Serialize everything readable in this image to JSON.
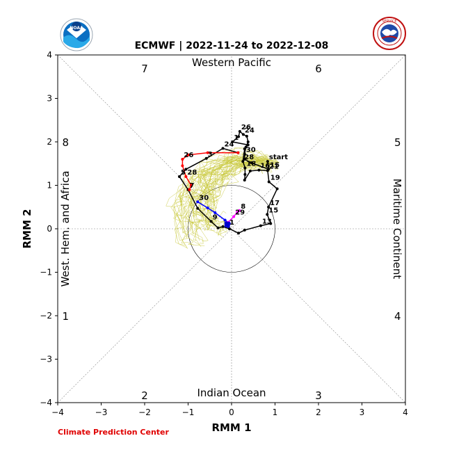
{
  "chart_data": {
    "type": "line",
    "title": "ECMWF | 2022-11-24 to 2022-12-08",
    "xlabel": "RMM 1",
    "ylabel": "RMM 2",
    "xlim": [
      -4,
      4
    ],
    "ylim": [
      -4,
      4
    ],
    "ticks": [
      -4,
      -3,
      -2,
      -1,
      0,
      1,
      2,
      3,
      4
    ],
    "grid": false,
    "unit_circle_radius": 1,
    "phase_numbers": [
      {
        "label": "7",
        "x": -2,
        "y": 3.7
      },
      {
        "label": "6",
        "x": 2,
        "y": 3.7
      },
      {
        "label": "8",
        "x": -3.82,
        "y": 2
      },
      {
        "label": "5",
        "x": 3.82,
        "y": 2
      },
      {
        "label": "1",
        "x": -3.82,
        "y": -2
      },
      {
        "label": "4",
        "x": 3.82,
        "y": -2
      },
      {
        "label": "2",
        "x": -2,
        "y": -3.82
      },
      {
        "label": "3",
        "x": 2,
        "y": -3.82
      }
    ],
    "region_labels": {
      "top": "Western Pacific",
      "bottom": "Indian Ocean",
      "left": "West. Hem. and Africa",
      "right": "Maritime Continent"
    },
    "series": [
      {
        "color": "#000000",
        "points": [
          [
            0.83,
            1.55,
            "start"
          ],
          [
            0.85,
            1.37,
            "15"
          ],
          [
            0.45,
            1.52,
            ""
          ],
          [
            0.3,
            1.6,
            ""
          ],
          [
            0.3,
            1.72,
            "30"
          ],
          [
            0.33,
            1.88,
            ""
          ],
          [
            0.38,
            2.0,
            ""
          ],
          [
            0.35,
            2.13,
            ""
          ],
          [
            0.27,
            2.17,
            "24"
          ],
          [
            0.19,
            2.24,
            "26"
          ],
          [
            0.16,
            2.12,
            ""
          ],
          [
            0.02,
            2.0,
            "1"
          ],
          [
            0.38,
            1.93,
            ""
          ],
          [
            0.3,
            1.84,
            ""
          ],
          [
            0.26,
            1.55,
            "28"
          ],
          [
            0.31,
            1.4,
            "18"
          ],
          [
            0.31,
            1.25,
            ""
          ],
          [
            0.3,
            1.12,
            ""
          ],
          [
            0.43,
            1.33,
            ""
          ],
          [
            0.63,
            1.35,
            "16"
          ],
          [
            0.83,
            1.34,
            "21"
          ],
          [
            0.86,
            1.08,
            "19"
          ],
          [
            1.05,
            0.92,
            ""
          ],
          [
            0.85,
            0.5,
            "17"
          ],
          [
            0.82,
            0.33,
            "15"
          ],
          [
            0.9,
            0.12,
            ""
          ],
          [
            0.67,
            0.07,
            "13"
          ],
          [
            0.3,
            -0.03,
            ""
          ],
          [
            0.16,
            -0.1,
            ""
          ],
          [
            -0.05,
            0.0,
            ""
          ],
          [
            -0.2,
            0.05,
            ""
          ],
          [
            -0.31,
            0.02,
            ""
          ],
          [
            -0.47,
            0.17,
            "9"
          ],
          [
            -0.78,
            0.47,
            ""
          ],
          [
            -1.0,
            0.9,
            "7"
          ],
          [
            -1.2,
            1.2,
            "5"
          ],
          [
            -1.05,
            1.37,
            ""
          ],
          [
            -0.58,
            1.62,
            "3"
          ],
          [
            -0.2,
            1.85,
            "24"
          ],
          [
            0.15,
            1.75,
            ""
          ]
        ]
      },
      {
        "color": "#ff0000",
        "points": [
          [
            0.15,
            1.75,
            ""
          ],
          [
            -0.55,
            1.75,
            ""
          ],
          [
            -1.0,
            1.7,
            ""
          ],
          [
            -1.13,
            1.6,
            "26"
          ],
          [
            -1.13,
            1.45,
            ""
          ],
          [
            -1.05,
            1.2,
            "28"
          ],
          [
            -0.93,
            1.0,
            ""
          ],
          [
            -0.97,
            0.9,
            ""
          ]
        ]
      },
      {
        "color": "#0000ff",
        "points": [
          [
            -0.78,
            0.62,
            "30"
          ],
          [
            -0.55,
            0.48,
            ""
          ],
          [
            -0.38,
            0.37,
            ""
          ],
          [
            -0.15,
            0.2,
            ""
          ],
          [
            -0.05,
            0.12,
            ""
          ],
          [
            -0.08,
            0.05,
            "1"
          ],
          [
            -0.1,
            0.1,
            ""
          ]
        ]
      },
      {
        "color": "#ff00ff",
        "points": [
          [
            -0.08,
            0.15,
            ""
          ],
          [
            0.05,
            0.28,
            "29"
          ],
          [
            0.13,
            0.38,
            ""
          ],
          [
            0.18,
            0.42,
            "8"
          ]
        ]
      }
    ]
  },
  "footer": "Climate Prediction Center"
}
